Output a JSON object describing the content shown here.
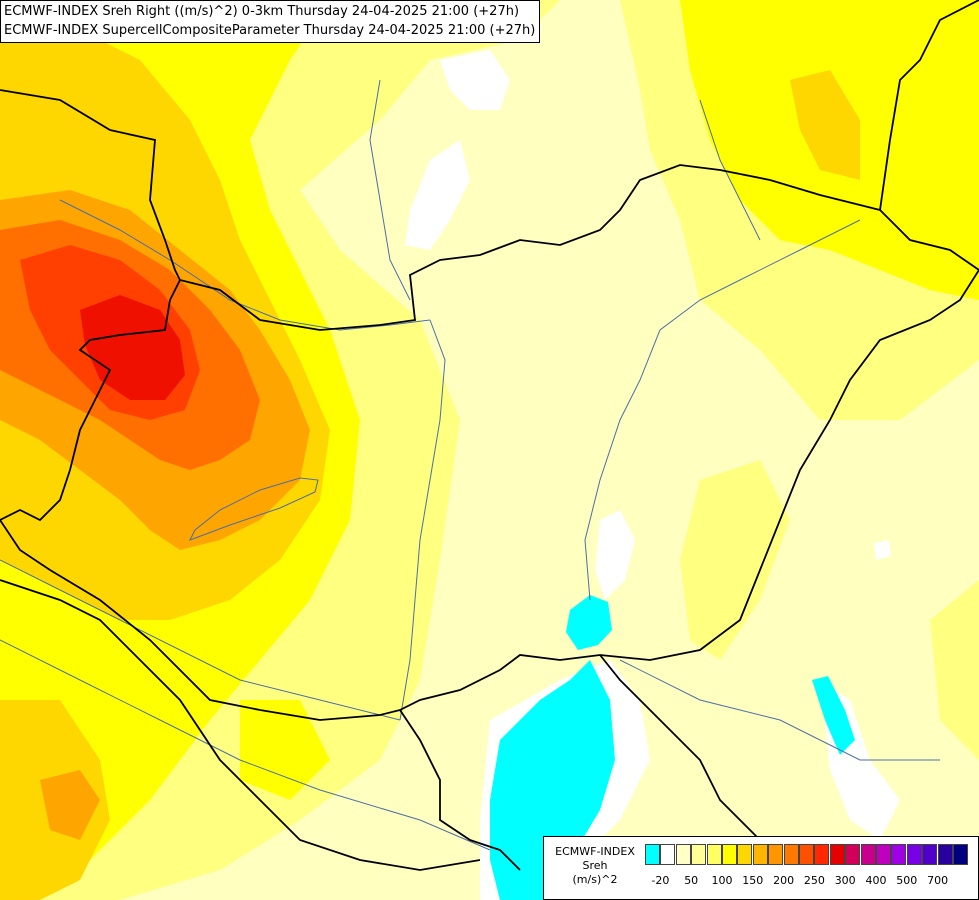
{
  "titles": {
    "line1": "ECMWF-INDEX Sreh Right ((m/s)^2) 0-3km Thursday 24-04-2025 21:00 (+27h)",
    "line2": "ECMWF-INDEX SupercellCompositeParameter Thursday 24-04-2025 21:00 (+27h)"
  },
  "legend": {
    "model": "ECMWF-INDEX",
    "variable": "Sreh",
    "unit": "(m/s)^2",
    "colors": [
      "#00ffff",
      "#ffffff",
      "#ffffc8",
      "#ffff96",
      "#ffff64",
      "#ffff00",
      "#ffd700",
      "#ffb400",
      "#ff9600",
      "#ff7800",
      "#ff5000",
      "#ff2800",
      "#e60000",
      "#d2005a",
      "#c8008c",
      "#be00be",
      "#a000e6",
      "#7800e6",
      "#5000c8",
      "#2800a0",
      "#000080"
    ],
    "ticks": [
      "-20",
      "50",
      "100",
      "150",
      "200",
      "250",
      "300",
      "400",
      "500",
      "700"
    ]
  },
  "map_colors": {
    "cyan": "#00ffff",
    "white": "#ffffff",
    "pale_yellow": "#ffffc0",
    "light_yellow": "#ffff80",
    "yellow": "#ffff00",
    "gold": "#ffd700",
    "orange": "#ffa500",
    "dark_orange": "#ff7000",
    "red_orange": "#ff4000",
    "red": "#f01000",
    "border": "#000000",
    "river": "#4a6fa5"
  }
}
